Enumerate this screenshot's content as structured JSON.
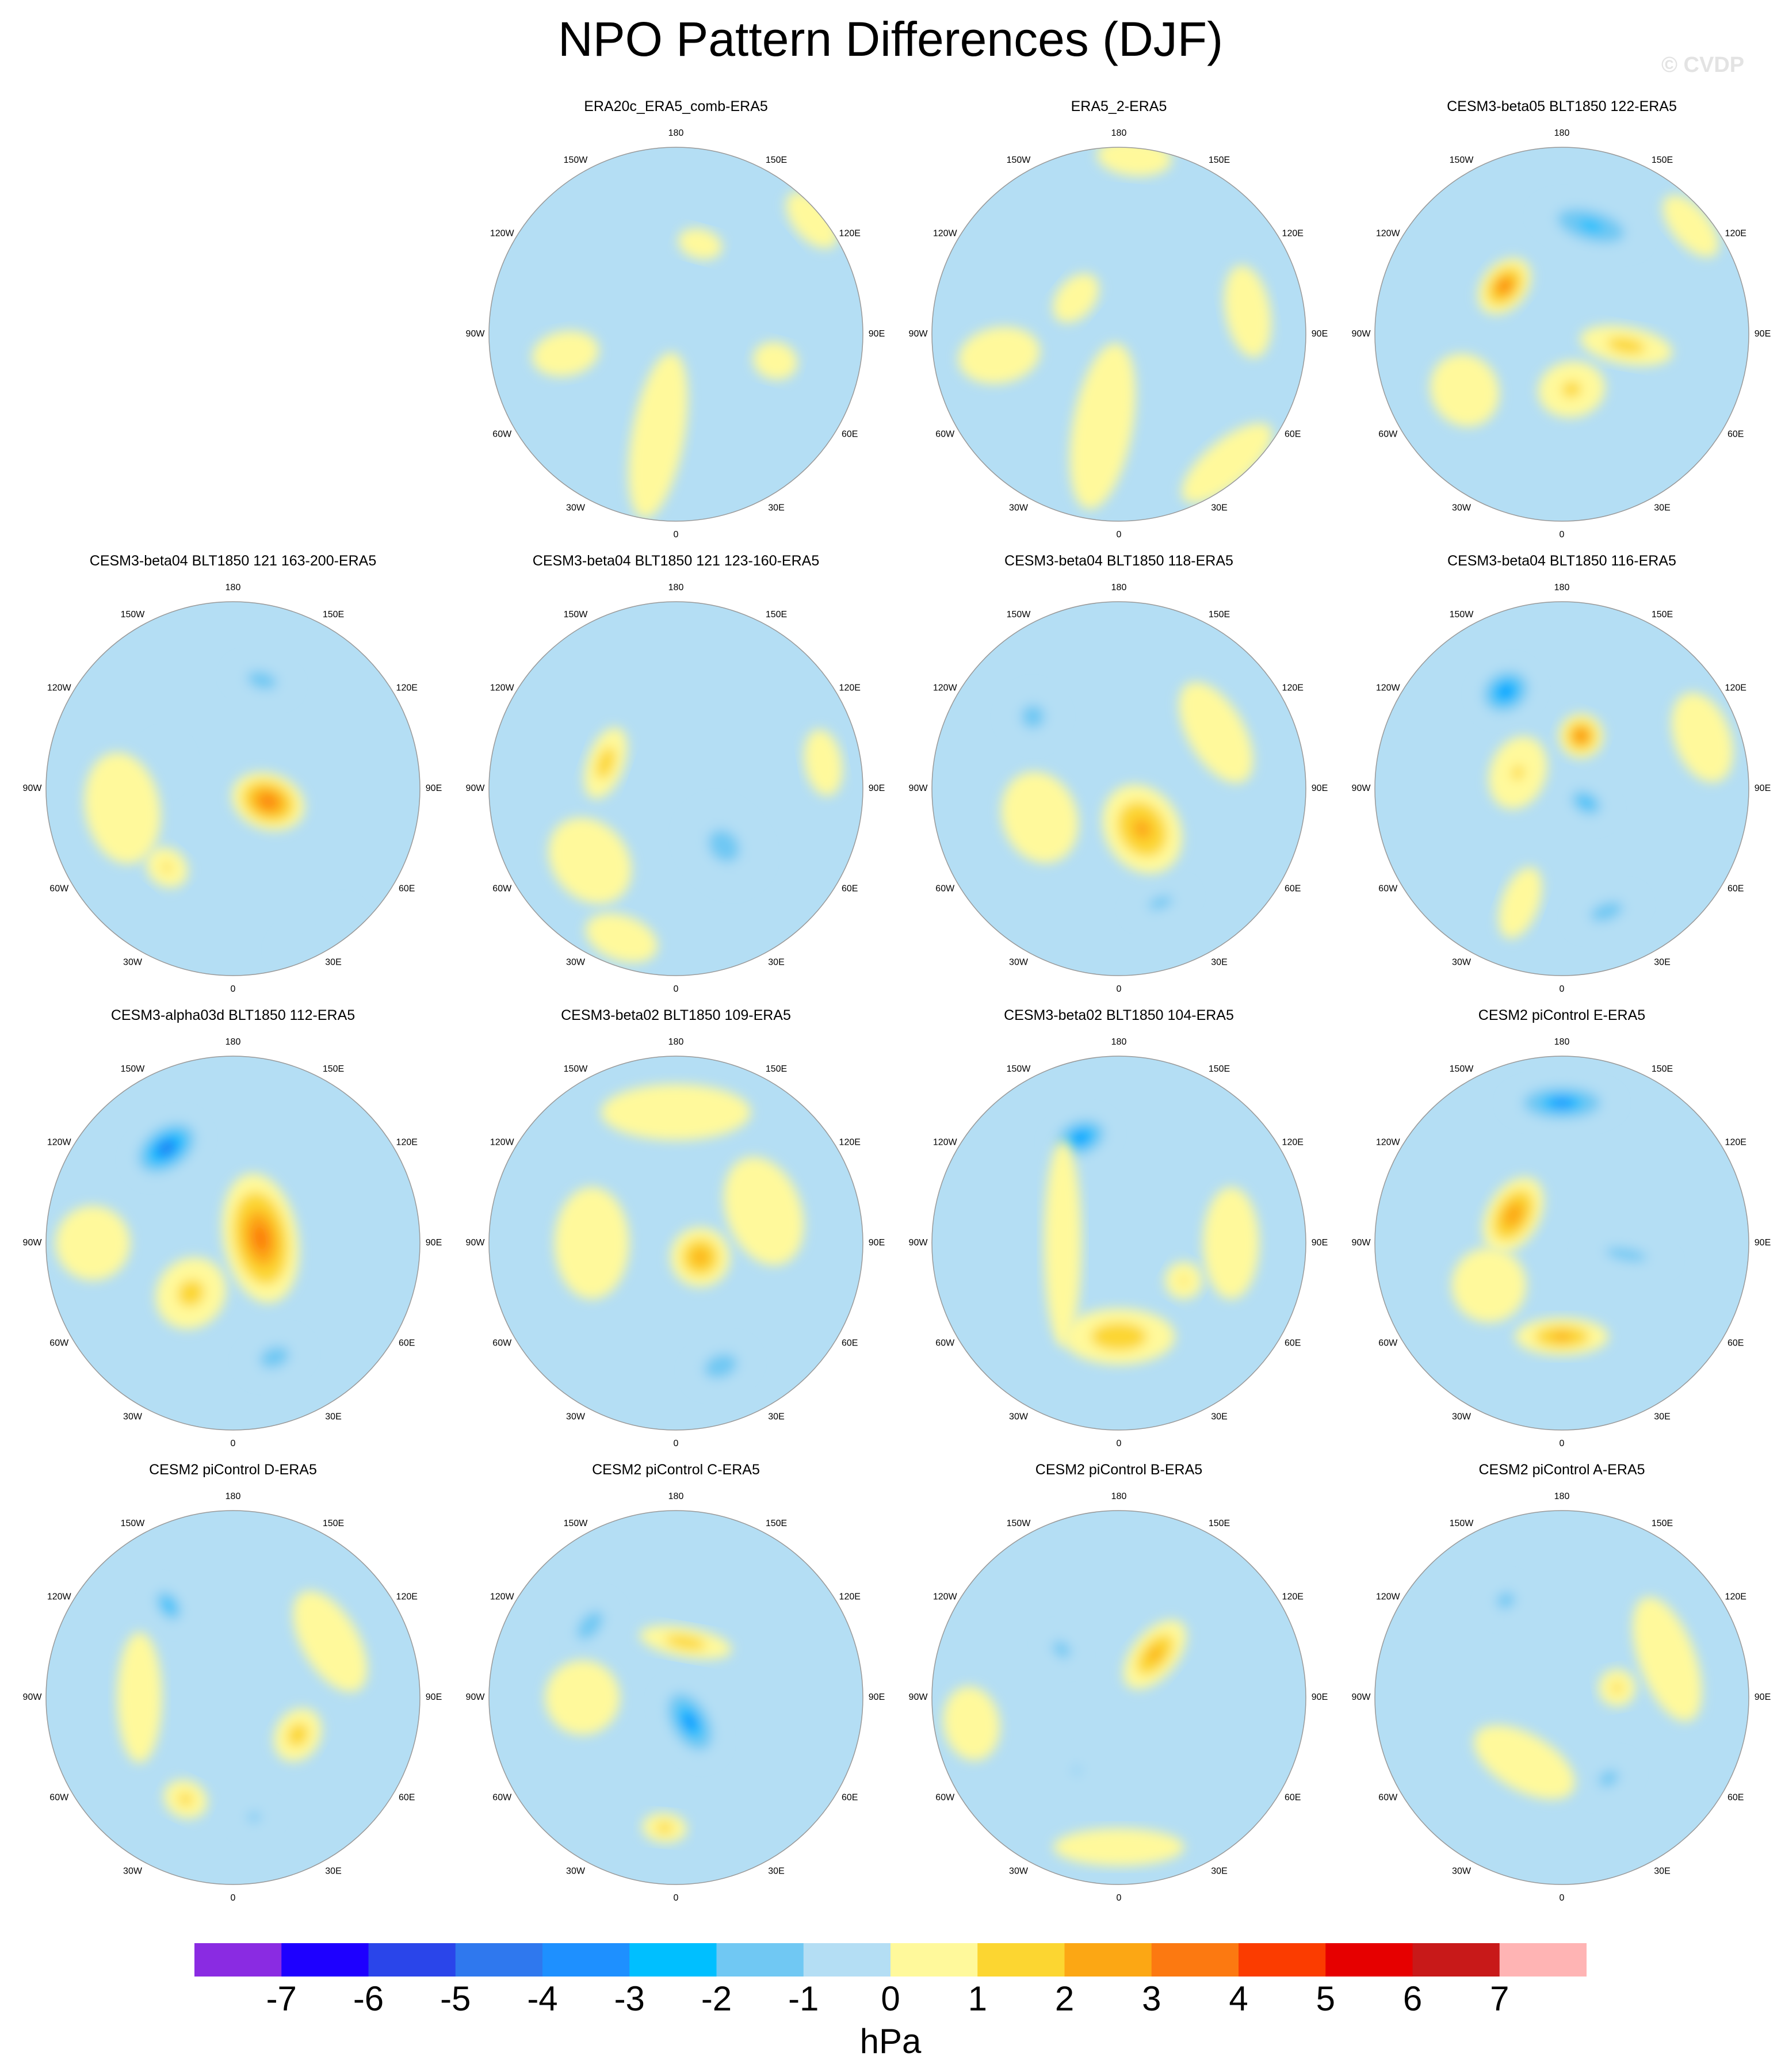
{
  "title": "NPO Pattern Differences (DJF)",
  "watermark": "© CVDP",
  "lon_labels": {
    "n": "180",
    "nne": "150E",
    "ene": "120E",
    "e": "90E",
    "ese": "60E",
    "sse": "30E",
    "s": "0",
    "ssw": "30W",
    "wsw": "60W",
    "w": "90W",
    "wnw": "120W",
    "nnw": "150W"
  },
  "panels": [
    {
      "title": "ERA20c_ERA5_comb-ERA5",
      "anoms": [
        {
          "lon": -10,
          "r": 0.55,
          "ax": 0.14,
          "ay": 0.45,
          "v": 0.6
        },
        {
          "lon": -80,
          "r": 0.6,
          "ax": 0.12,
          "ay": 0.18,
          "v": 0.6
        },
        {
          "lon": 165,
          "r": 0.5,
          "ax": 0.12,
          "ay": 0.08,
          "v": 0.6
        },
        {
          "lon": 130,
          "r": 0.95,
          "ax": 0.18,
          "ay": 0.1,
          "v": 0.5
        },
        {
          "lon": 75,
          "r": 0.55,
          "ax": 0.1,
          "ay": 0.12,
          "v": 0.5
        }
      ]
    },
    {
      "title": "ERA5_2-ERA5",
      "anoms": [
        {
          "lon": -10,
          "r": 0.5,
          "ax": 0.16,
          "ay": 0.45,
          "v": 0.6
        },
        {
          "lon": -80,
          "r": 0.65,
          "ax": 0.15,
          "ay": 0.22,
          "v": 0.6
        },
        {
          "lon": 175,
          "r": 0.95,
          "ax": 0.2,
          "ay": 0.1,
          "v": 0.6
        },
        {
          "lon": 100,
          "r": 0.7,
          "ax": 0.25,
          "ay": 0.12,
          "v": 0.6
        },
        {
          "lon": 40,
          "r": 0.9,
          "ax": 0.3,
          "ay": 0.12,
          "v": 0.6
        },
        {
          "lon": -130,
          "r": 0.3,
          "ax": 0.15,
          "ay": 0.1,
          "v": 0.6
        }
      ]
    },
    {
      "title": "CESM3-beta05 BLT1850 122-ERA5",
      "anoms": [
        {
          "lon": 165,
          "r": 0.6,
          "ax": 0.3,
          "ay": 0.13,
          "v": -2.6
        },
        {
          "lon": -130,
          "r": 0.4,
          "ax": 0.17,
          "ay": 0.12,
          "v": 3.2
        },
        {
          "lon": 80,
          "r": 0.35,
          "ax": 0.1,
          "ay": 0.25,
          "v": 1.7
        },
        {
          "lon": 10,
          "r": 0.3,
          "ax": 0.18,
          "ay": 0.15,
          "v": 1.4
        },
        {
          "lon": -60,
          "r": 0.6,
          "ax": 0.2,
          "ay": 0.18,
          "v": 0.6
        },
        {
          "lon": 130,
          "r": 0.9,
          "ax": 0.2,
          "ay": 0.1,
          "v": 0.6
        }
      ]
    },
    {
      "title": "CESM3-beta04 BLT1850 121 163-200-ERA5",
      "anoms": [
        {
          "lon": 70,
          "r": 0.2,
          "ax": 0.15,
          "ay": 0.2,
          "v": 3.6
        },
        {
          "lon": 165,
          "r": 0.6,
          "ax": 0.18,
          "ay": 0.1,
          "v": -1.8
        },
        {
          "lon": -110,
          "r": 0.4,
          "ax": 0.14,
          "ay": 0.12,
          "v": -0.8
        },
        {
          "lon": -40,
          "r": 0.55,
          "ax": 0.12,
          "ay": 0.1,
          "v": 1.3
        },
        {
          "lon": -80,
          "r": 0.6,
          "ax": 0.3,
          "ay": 0.2,
          "v": 0.6
        },
        {
          "lon": 30,
          "r": 0.9,
          "ax": 0.25,
          "ay": 0.12,
          "v": -0.6
        }
      ]
    },
    {
      "title": "CESM3-beta04 BLT1850 121 123-160-ERA5",
      "anoms": [
        {
          "lon": -110,
          "r": 0.4,
          "ax": 0.2,
          "ay": 0.1,
          "v": 1.8
        },
        {
          "lon": 40,
          "r": 0.4,
          "ax": 0.2,
          "ay": 0.25,
          "v": -1.6
        },
        {
          "lon": 100,
          "r": 0.8,
          "ax": 0.18,
          "ay": 0.1,
          "v": 0.6
        },
        {
          "lon": -50,
          "r": 0.6,
          "ax": 0.25,
          "ay": 0.2,
          "v": 0.6
        },
        {
          "lon": -20,
          "r": 0.85,
          "ax": 0.2,
          "ay": 0.12,
          "v": 0.6
        }
      ]
    },
    {
      "title": "CESM3-beta04 BLT1850 118-ERA5",
      "anoms": [
        {
          "lon": 30,
          "r": 0.25,
          "ax": 0.2,
          "ay": 0.25,
          "v": 2.6
        },
        {
          "lon": -130,
          "r": 0.6,
          "ax": 0.15,
          "ay": 0.15,
          "v": -1.7
        },
        {
          "lon": 20,
          "r": 0.65,
          "ax": 0.18,
          "ay": 0.08,
          "v": -1.6
        },
        {
          "lon": 120,
          "r": 0.6,
          "ax": 0.3,
          "ay": 0.15,
          "v": 0.6
        },
        {
          "lon": -70,
          "r": 0.45,
          "ax": 0.25,
          "ay": 0.2,
          "v": 0.6
        }
      ]
    },
    {
      "title": "CESM3-beta04 BLT1850 116-ERA5",
      "anoms": [
        {
          "lon": -150,
          "r": 0.6,
          "ax": 0.17,
          "ay": 0.14,
          "v": -3.6
        },
        {
          "lon": 160,
          "r": 0.3,
          "ax": 0.12,
          "ay": 0.12,
          "v": 3.2
        },
        {
          "lon": 60,
          "r": 0.15,
          "ax": 0.1,
          "ay": 0.15,
          "v": -2.2
        },
        {
          "lon": 20,
          "r": 0.7,
          "ax": 0.2,
          "ay": 0.1,
          "v": -1.8
        },
        {
          "lon": -110,
          "r": 0.25,
          "ax": 0.2,
          "ay": 0.15,
          "v": 1.2
        },
        {
          "lon": -20,
          "r": 0.65,
          "ax": 0.1,
          "ay": 0.2,
          "v": 0.6
        },
        {
          "lon": 110,
          "r": 0.8,
          "ax": 0.25,
          "ay": 0.15,
          "v": 0.6
        }
      ]
    },
    {
      "title": "CESM3-alpha03d BLT1850 112-ERA5",
      "anoms": [
        {
          "lon": -145,
          "r": 0.62,
          "ax": 0.22,
          "ay": 0.14,
          "v": -4.2
        },
        {
          "lon": 100,
          "r": 0.15,
          "ax": 0.35,
          "ay": 0.2,
          "v": 3.5
        },
        {
          "lon": 20,
          "r": 0.65,
          "ax": 0.18,
          "ay": 0.12,
          "v": -1.8
        },
        {
          "lon": -40,
          "r": 0.35,
          "ax": 0.18,
          "ay": 0.2,
          "v": 1.6
        },
        {
          "lon": -90,
          "r": 0.75,
          "ax": 0.2,
          "ay": 0.2,
          "v": 0.6
        }
      ]
    },
    {
      "title": "CESM3-beta02 BLT1850 109-ERA5",
      "anoms": [
        {
          "lon": 60,
          "r": 0.15,
          "ax": 0.16,
          "ay": 0.16,
          "v": 2.6
        },
        {
          "lon": 20,
          "r": 0.7,
          "ax": 0.18,
          "ay": 0.12,
          "v": -2.0
        },
        {
          "lon": 180,
          "r": 0.7,
          "ax": 0.4,
          "ay": 0.15,
          "v": 0.6
        },
        {
          "lon": -90,
          "r": 0.45,
          "ax": 0.3,
          "ay": 0.2,
          "v": 0.6
        },
        {
          "lon": 110,
          "r": 0.5,
          "ax": 0.3,
          "ay": 0.2,
          "v": 0.6
        }
      ]
    },
    {
      "title": "CESM3-beta02 BLT1850 104-ERA5",
      "anoms": [
        {
          "lon": -160,
          "r": 0.6,
          "ax": 0.18,
          "ay": 0.12,
          "v": -3.6
        },
        {
          "lon": 0,
          "r": 0.5,
          "ax": 0.3,
          "ay": 0.15,
          "v": 2.0
        },
        {
          "lon": 60,
          "r": 0.4,
          "ax": 0.1,
          "ay": 0.1,
          "v": 1.2
        },
        {
          "lon": -90,
          "r": 0.3,
          "ax": 0.55,
          "ay": 0.1,
          "v": 0.6
        },
        {
          "lon": 90,
          "r": 0.6,
          "ax": 0.3,
          "ay": 0.15,
          "v": 0.6
        }
      ]
    },
    {
      "title": "CESM2 piControl E-ERA5",
      "anoms": [
        {
          "lon": 180,
          "r": 0.75,
          "ax": 0.3,
          "ay": 0.12,
          "v": -3.2
        },
        {
          "lon": -120,
          "r": 0.3,
          "ax": 0.22,
          "ay": 0.14,
          "v": 3.0
        },
        {
          "lon": 0,
          "r": 0.5,
          "ax": 0.25,
          "ay": 0.1,
          "v": 2.4
        },
        {
          "lon": 80,
          "r": 0.35,
          "ax": 0.07,
          "ay": 0.25,
          "v": -1.8
        },
        {
          "lon": -60,
          "r": 0.45,
          "ax": 0.2,
          "ay": 0.2,
          "v": 0.6
        }
      ]
    },
    {
      "title": "CESM2 piControl D-ERA5",
      "anoms": [
        {
          "lon": -145,
          "r": 0.6,
          "ax": 0.08,
          "ay": 0.13,
          "v": -2.8
        },
        {
          "lon": 60,
          "r": 0.4,
          "ax": 0.15,
          "ay": 0.12,
          "v": 1.8
        },
        {
          "lon": -25,
          "r": 0.6,
          "ax": 0.12,
          "ay": 0.1,
          "v": 1.5
        },
        {
          "lon": 10,
          "r": 0.65,
          "ax": 0.12,
          "ay": 0.08,
          "v": -1.4
        },
        {
          "lon": -90,
          "r": 0.5,
          "ax": 0.35,
          "ay": 0.12,
          "v": 0.6
        },
        {
          "lon": 120,
          "r": 0.6,
          "ax": 0.3,
          "ay": 0.15,
          "v": 0.6
        }
      ]
    },
    {
      "title": "CESM2 piControl C-ERA5",
      "anoms": [
        {
          "lon": 30,
          "r": 0.15,
          "ax": 0.14,
          "ay": 0.24,
          "v": -3.3
        },
        {
          "lon": -130,
          "r": 0.6,
          "ax": 0.18,
          "ay": 0.1,
          "v": -2.0
        },
        {
          "lon": 170,
          "r": 0.3,
          "ax": 0.25,
          "ay": 0.08,
          "v": 1.8
        },
        {
          "lon": -5,
          "r": 0.7,
          "ax": 0.12,
          "ay": 0.08,
          "v": 1.6
        },
        {
          "lon": -90,
          "r": 0.5,
          "ax": 0.2,
          "ay": 0.2,
          "v": 0.6
        }
      ]
    },
    {
      "title": "CESM2 piControl B-ERA5",
      "anoms": [
        {
          "lon": 140,
          "r": 0.3,
          "ax": 0.12,
          "ay": 0.22,
          "v": 2.4
        },
        {
          "lon": -130,
          "r": 0.4,
          "ax": 0.08,
          "ay": 0.12,
          "v": -1.8
        },
        {
          "lon": -30,
          "r": 0.45,
          "ax": 0.08,
          "ay": 0.1,
          "v": -1.2
        },
        {
          "lon": 0,
          "r": 0.8,
          "ax": 0.35,
          "ay": 0.1,
          "v": 0.6
        },
        {
          "lon": -80,
          "r": 0.8,
          "ax": 0.2,
          "ay": 0.15,
          "v": 0.6
        }
      ]
    },
    {
      "title": "CESM2 piControl A-ERA5",
      "anoms": [
        {
          "lon": -150,
          "r": 0.6,
          "ax": 0.12,
          "ay": 0.1,
          "v": -1.7
        },
        {
          "lon": 30,
          "r": 0.5,
          "ax": 0.15,
          "ay": 0.1,
          "v": -1.6
        },
        {
          "lon": 100,
          "r": 0.3,
          "ax": 0.1,
          "ay": 0.1,
          "v": 1.4
        },
        {
          "lon": -30,
          "r": 0.4,
          "ax": 0.3,
          "ay": 0.15,
          "v": 0.6
        },
        {
          "lon": 110,
          "r": 0.6,
          "ax": 0.35,
          "ay": 0.15,
          "v": 0.6
        }
      ]
    }
  ],
  "colorbar": {
    "units": "hPa",
    "levels": [
      "-7",
      "-6",
      "-5",
      "-4",
      "-3",
      "-2",
      "-1",
      "0",
      "1",
      "2",
      "3",
      "4",
      "5",
      "6",
      "7"
    ],
    "colors": [
      "#8a2be2",
      "#1e00ff",
      "#2a45ea",
      "#2f78ee",
      "#1e90ff",
      "#00bfff",
      "#70c8f3",
      "#b4def4",
      "#fff99b",
      "#fcd631",
      "#fca714",
      "#fc7911",
      "#fb3c00",
      "#e60000",
      "#c81919",
      "#ffb4b4"
    ]
  }
}
